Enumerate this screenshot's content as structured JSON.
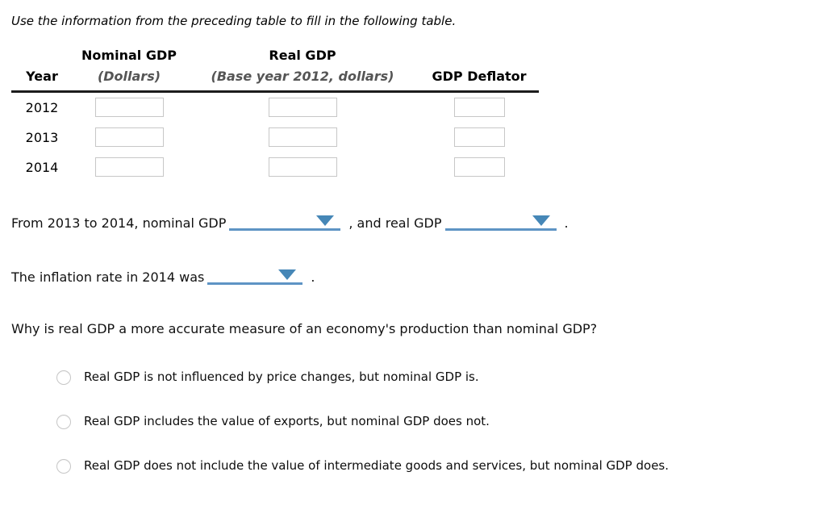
{
  "instruction": "Use the information from the preceding table to fill in the following table.",
  "table": {
    "group_headers": {
      "nominal_gdp": "Nominal GDP",
      "real_gdp": "Real GDP"
    },
    "column_headers": {
      "year": "Year",
      "nominal_unit": "(Dollars)",
      "real_unit": "(Base year 2012, dollars)",
      "deflator": "GDP Deflator"
    },
    "rows": [
      {
        "year": "2012",
        "inputs": [
          "",
          "",
          ""
        ]
      },
      {
        "year": "2013",
        "inputs": [
          "",
          "",
          ""
        ]
      },
      {
        "year": "2014",
        "inputs": [
          "",
          "",
          ""
        ]
      }
    ]
  },
  "fill_in": {
    "s1": {
      "before": "From 2013 to 2014, nominal GDP",
      "dropdown1_value": "",
      "middle": ", and real GDP",
      "dropdown2_value": "",
      "after": "."
    },
    "s2": {
      "before": "The inflation rate in 2014 was",
      "dropdown_value": "",
      "after": "."
    }
  },
  "question": "Why is real GDP a more accurate measure of an economy's production than nominal GDP?",
  "options": [
    "Real GDP is not influenced by price changes, but nominal GDP is.",
    "Real GDP includes the value of exports, but nominal GDP does not.",
    "Real GDP does not include the value of intermediate goods and services, but nominal GDP does."
  ],
  "colors": {
    "dropdown_line": "#5e94c4",
    "dropdown_arrow": "#4687b7",
    "header_rule": "#1c1c1c",
    "input_border": "#c7c7c7",
    "radio_border": "#c6c6c6",
    "subheader_text": "#555555"
  }
}
